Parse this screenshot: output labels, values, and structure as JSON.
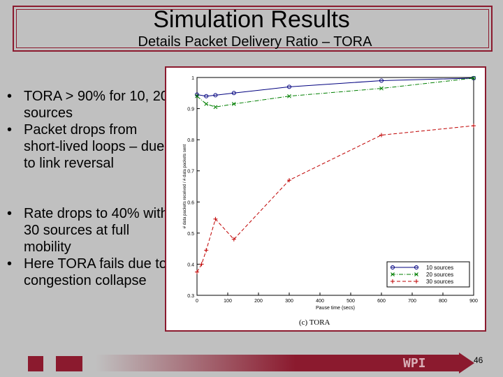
{
  "slide": {
    "title": "Simulation Results",
    "subtitle": "Details Packet Delivery Ratio – TORA",
    "bullets_top": [
      "TORA > 90% for 10, 20 sources",
      "Packet drops from short-lived loops – due to link reversal"
    ],
    "bullets_bottom": [
      "Rate drops to 40% with 30 sources at full mobility",
      "Here TORA fails due to congestion collapse"
    ],
    "footer_logo": "WPI",
    "page_number": "46",
    "colors": {
      "accent": "#8b1a2e",
      "background": "#c0c0c0"
    }
  },
  "chart_data": {
    "type": "line",
    "caption": "(c)  TORA",
    "xlabel": "Pause time (secs)",
    "ylabel": "# data packets received / # data packets sent",
    "xlim": [
      0,
      900
    ],
    "ylim": [
      0.3,
      1.0
    ],
    "xticks": [
      0,
      100,
      200,
      300,
      400,
      500,
      600,
      700,
      800,
      900
    ],
    "yticks": [
      0.3,
      0.4,
      0.5,
      0.6,
      0.7,
      0.8,
      0.9,
      1.0
    ],
    "legend_position": "bottom-right",
    "series": [
      {
        "name": "10 sources",
        "color": "#00007f",
        "dash": "solid",
        "marker": "o",
        "x": [
          0,
          30,
          60,
          120,
          300,
          600,
          900
        ],
        "y": [
          0.945,
          0.94,
          0.943,
          0.95,
          0.97,
          0.99,
          0.998
        ]
      },
      {
        "name": "20 sources",
        "color": "#007f00",
        "dash": "dashdot",
        "marker": "x",
        "x": [
          0,
          30,
          60,
          120,
          300,
          600,
          900
        ],
        "y": [
          0.94,
          0.915,
          0.905,
          0.915,
          0.94,
          0.965,
          0.998
        ]
      },
      {
        "name": "30 sources",
        "color": "#bf0000",
        "dash": "dashed",
        "marker": "+",
        "x": [
          0,
          15,
          30,
          60,
          120,
          300,
          600,
          900
        ],
        "y": [
          0.375,
          0.4,
          0.445,
          0.545,
          0.48,
          0.67,
          0.815,
          0.845
        ]
      }
    ]
  }
}
